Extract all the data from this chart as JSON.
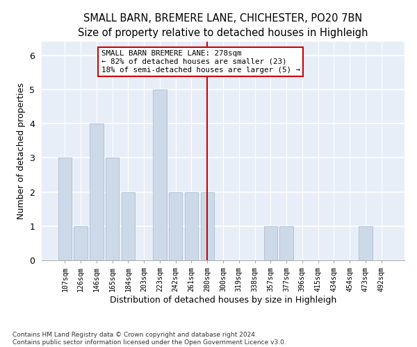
{
  "title": "SMALL BARN, BREMERE LANE, CHICHESTER, PO20 7BN",
  "subtitle": "Size of property relative to detached houses in Highleigh",
  "xlabel": "Distribution of detached houses by size in Highleigh",
  "ylabel": "Number of detached properties",
  "bar_labels": [
    "107sqm",
    "126sqm",
    "146sqm",
    "165sqm",
    "184sqm",
    "203sqm",
    "223sqm",
    "242sqm",
    "261sqm",
    "280sqm",
    "300sqm",
    "319sqm",
    "338sqm",
    "357sqm",
    "377sqm",
    "396sqm",
    "415sqm",
    "434sqm",
    "454sqm",
    "473sqm",
    "492sqm"
  ],
  "bar_values": [
    3,
    1,
    4,
    3,
    2,
    0,
    5,
    2,
    2,
    2,
    0,
    0,
    0,
    1,
    1,
    0,
    0,
    0,
    0,
    1,
    0
  ],
  "bar_color": "#ccd9e8",
  "bar_edge_color": "#aabdd4",
  "vline_color": "#cc0000",
  "annotation_box_color": "#cc0000",
  "ylim": [
    0,
    6.4
  ],
  "yticks": [
    0,
    1,
    2,
    3,
    4,
    5,
    6
  ],
  "background_color": "#e8eef8",
  "footer1": "Contains HM Land Registry data © Crown copyright and database right 2024.",
  "footer2": "Contains public sector information licensed under the Open Government Licence v3.0.",
  "title_fontsize": 10.5,
  "bar_width": 0.85,
  "annotation_line1": "SMALL BARN BREMERE LANE: 278sqm",
  "annotation_line2": "← 82% of detached houses are smaller (23)",
  "annotation_line3": "18% of semi-detached houses are larger (5) →",
  "vline_x_index": 9.0
}
